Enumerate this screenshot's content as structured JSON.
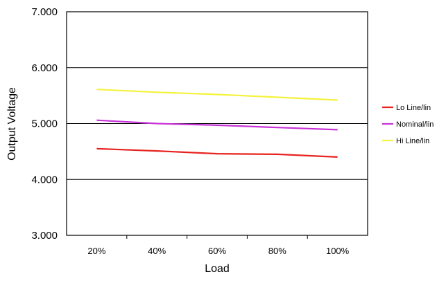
{
  "chart_data": {
    "type": "line",
    "title": "",
    "xlabel": "Load",
    "ylabel": "Output Voltage",
    "categories": [
      "20%",
      "40%",
      "60%",
      "80%",
      "100%"
    ],
    "y_ticks": [
      "3.000",
      "4.000",
      "5.000",
      "6.000",
      "7.000"
    ],
    "ylim": [
      3.0,
      7.0
    ],
    "grid": "horizontal",
    "legend_position": "right",
    "series": [
      {
        "name": "Lo Line/lin",
        "color": "#e8221e",
        "values": [
          4.55,
          4.51,
          4.46,
          4.45,
          4.4
        ]
      },
      {
        "name": "Nominal/lin",
        "color": "#c633d6",
        "values": [
          5.06,
          5.0,
          4.97,
          4.93,
          4.89
        ]
      },
      {
        "name": "Hi Line/lin",
        "color": "#f4f23c",
        "values": [
          5.61,
          5.56,
          5.52,
          5.47,
          5.42
        ]
      }
    ]
  }
}
